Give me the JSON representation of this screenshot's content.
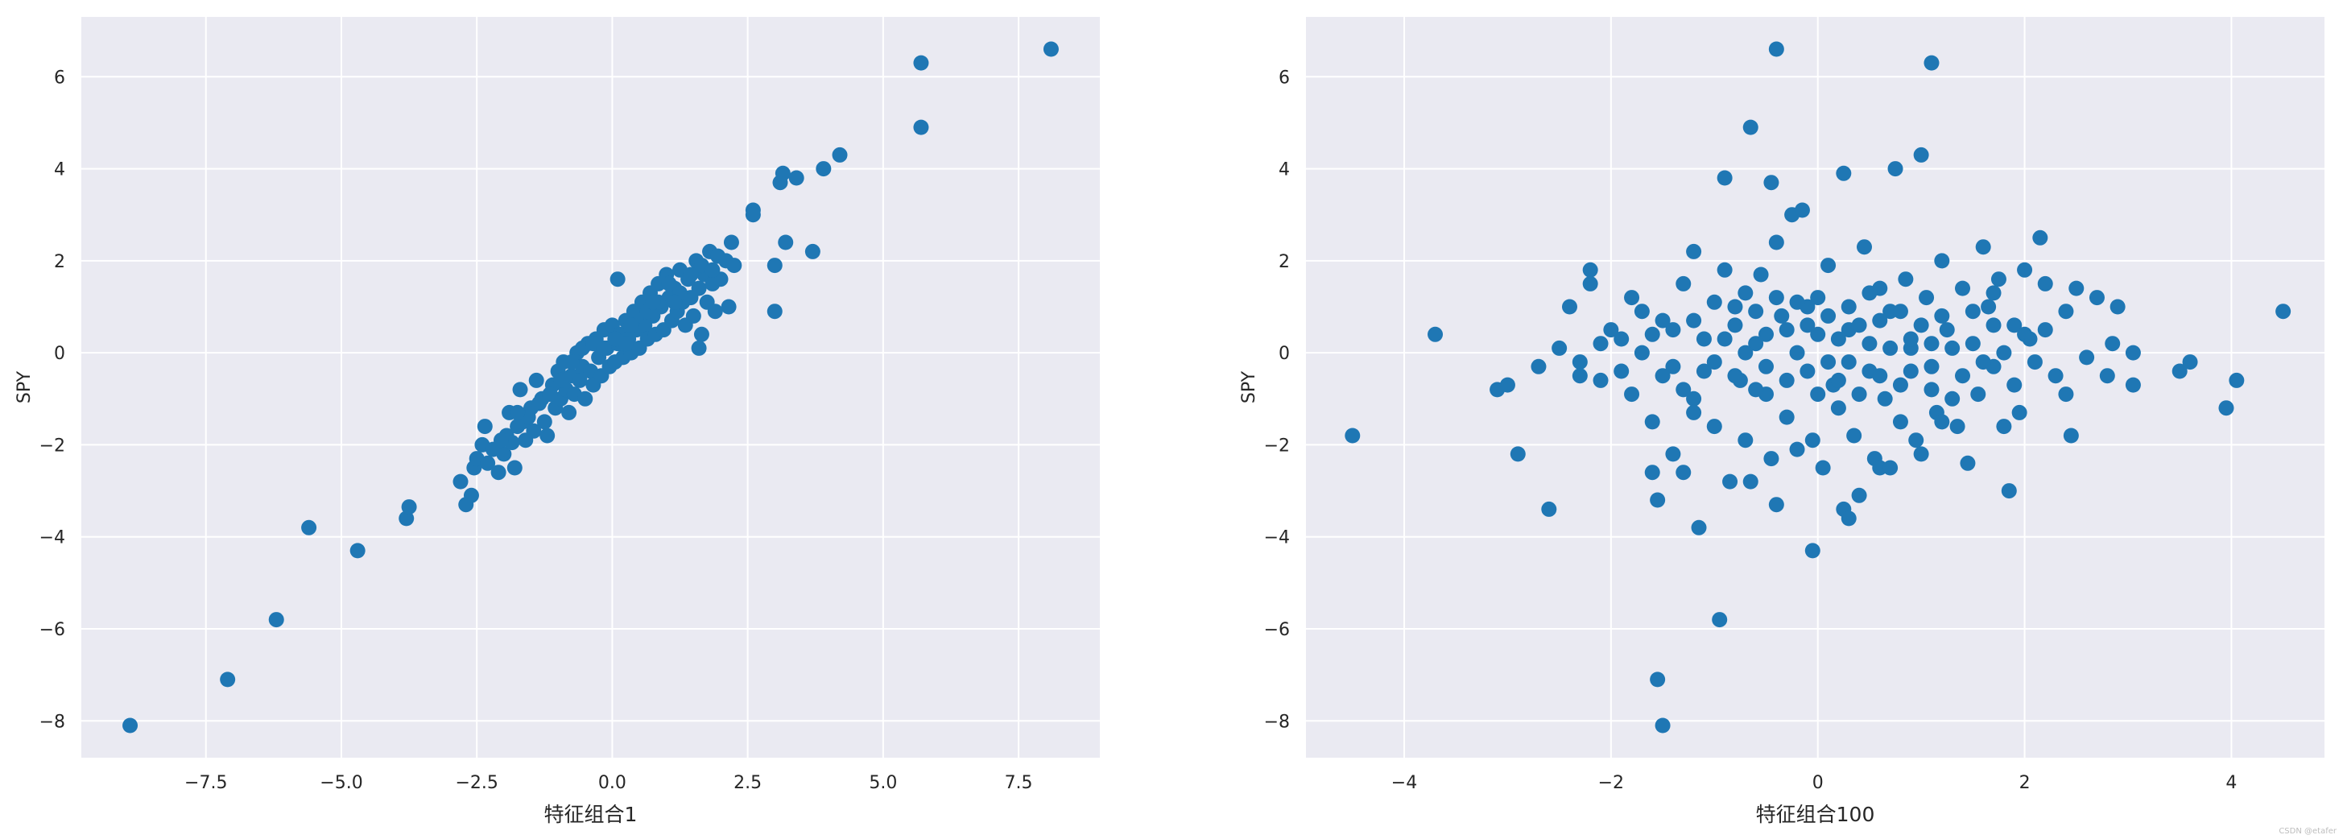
{
  "watermark": "CSDN @etafer",
  "chart_data": [
    {
      "type": "scatter",
      "xlabel": "特征组合1",
      "ylabel": "SPY",
      "xlim": [
        -9.8,
        9.0
      ],
      "ylim": [
        -8.8,
        7.3
      ],
      "xticks": [
        -7.5,
        -5.0,
        -2.5,
        0.0,
        2.5,
        5.0,
        7.5
      ],
      "xtick_labels": [
        "−7.5",
        "−5.0",
        "−2.5",
        "0.0",
        "2.5",
        "5.0",
        "7.5"
      ],
      "yticks": [
        -8,
        -6,
        -4,
        -2,
        0,
        2,
        4,
        6
      ],
      "ytick_labels": [
        "−8",
        "−6",
        "−4",
        "−2",
        "0",
        "2",
        "4",
        "6"
      ],
      "grid": true,
      "color": "#1f77b4",
      "background": "#eaeaf2",
      "points": [
        [
          -8.9,
          -8.1
        ],
        [
          -7.1,
          -7.1
        ],
        [
          -6.2,
          -5.8
        ],
        [
          -5.6,
          -3.8
        ],
        [
          -4.7,
          -4.3
        ],
        [
          -3.8,
          -3.6
        ],
        [
          -3.75,
          -3.35
        ],
        [
          -2.8,
          -2.8
        ],
        [
          -2.7,
          -3.3
        ],
        [
          -2.6,
          -3.1
        ],
        [
          -2.55,
          -2.5
        ],
        [
          -2.5,
          -2.3
        ],
        [
          -2.4,
          -2.0
        ],
        [
          -2.35,
          -1.6
        ],
        [
          -2.3,
          -2.4
        ],
        [
          -2.2,
          -2.1
        ],
        [
          -2.1,
          -2.6
        ],
        [
          -2.0,
          -2.2
        ],
        [
          -1.95,
          -1.8
        ],
        [
          -1.9,
          -1.3
        ],
        [
          -1.85,
          -1.95
        ],
        [
          -1.8,
          -2.5
        ],
        [
          -1.75,
          -1.6
        ],
        [
          -1.7,
          -0.8
        ],
        [
          -1.65,
          -1.5
        ],
        [
          -1.6,
          -1.9
        ],
        [
          -1.5,
          -1.2
        ],
        [
          -1.45,
          -1.7
        ],
        [
          -1.4,
          -0.6
        ],
        [
          -1.3,
          -1.0
        ],
        [
          -1.25,
          -1.5
        ],
        [
          -1.2,
          -1.8
        ],
        [
          -1.1,
          -0.7
        ],
        [
          -1.05,
          -1.2
        ],
        [
          -1.0,
          -0.4
        ],
        [
          -0.95,
          -1.0
        ],
        [
          -0.9,
          -0.2
        ],
        [
          -0.85,
          -0.8
        ],
        [
          -0.8,
          -1.3
        ],
        [
          -0.75,
          -0.5
        ],
        [
          -0.7,
          -0.9
        ],
        [
          -0.65,
          0.0
        ],
        [
          -0.6,
          -0.6
        ],
        [
          -0.55,
          -0.3
        ],
        [
          -0.5,
          -1.0
        ],
        [
          -0.45,
          0.2
        ],
        [
          -0.4,
          -0.4
        ],
        [
          -0.35,
          -0.7
        ],
        [
          -0.3,
          0.3
        ],
        [
          -0.25,
          -0.1
        ],
        [
          -0.2,
          -0.5
        ],
        [
          -0.15,
          0.5
        ],
        [
          -0.1,
          0.1
        ],
        [
          -0.05,
          -0.3
        ],
        [
          0.0,
          0.6
        ],
        [
          0.05,
          -0.2
        ],
        [
          0.1,
          0.2
        ],
        [
          0.1,
          1.6
        ],
        [
          0.15,
          0.4
        ],
        [
          0.2,
          -0.1
        ],
        [
          0.25,
          0.7
        ],
        [
          0.3,
          0.3
        ],
        [
          0.35,
          0.0
        ],
        [
          0.4,
          0.9
        ],
        [
          0.45,
          0.5
        ],
        [
          0.5,
          0.1
        ],
        [
          0.55,
          1.1
        ],
        [
          0.6,
          0.6
        ],
        [
          0.65,
          0.3
        ],
        [
          0.7,
          1.3
        ],
        [
          0.75,
          0.8
        ],
        [
          0.8,
          0.4
        ],
        [
          0.85,
          1.5
        ],
        [
          0.9,
          1.0
        ],
        [
          0.95,
          0.5
        ],
        [
          1.0,
          1.7
        ],
        [
          1.05,
          1.2
        ],
        [
          1.1,
          0.7
        ],
        [
          1.15,
          1.4
        ],
        [
          1.2,
          0.9
        ],
        [
          1.25,
          1.8
        ],
        [
          1.3,
          1.1
        ],
        [
          1.35,
          0.6
        ],
        [
          1.4,
          1.6
        ],
        [
          1.45,
          1.2
        ],
        [
          1.5,
          0.8
        ],
        [
          1.55,
          2.0
        ],
        [
          1.6,
          1.4
        ],
        [
          1.65,
          0.4
        ],
        [
          1.6,
          0.1
        ],
        [
          1.7,
          1.7
        ],
        [
          1.75,
          1.1
        ],
        [
          1.8,
          2.2
        ],
        [
          1.85,
          1.5
        ],
        [
          1.9,
          0.9
        ],
        [
          1.95,
          2.1
        ],
        [
          2.0,
          1.6
        ],
        [
          2.1,
          2.0
        ],
        [
          2.15,
          1.0
        ],
        [
          2.2,
          2.4
        ],
        [
          2.25,
          1.9
        ],
        [
          2.6,
          3.1
        ],
        [
          2.6,
          3.0
        ],
        [
          3.0,
          1.9
        ],
        [
          3.0,
          0.9
        ],
        [
          3.1,
          3.7
        ],
        [
          3.15,
          3.9
        ],
        [
          3.2,
          2.4
        ],
        [
          3.4,
          3.8
        ],
        [
          3.7,
          2.2
        ],
        [
          3.9,
          4.0
        ],
        [
          4.2,
          4.3
        ],
        [
          5.7,
          6.3
        ],
        [
          5.7,
          4.9
        ],
        [
          8.1,
          6.6
        ],
        [
          -1.55,
          -1.4
        ],
        [
          -1.35,
          -1.1
        ],
        [
          -1.15,
          -0.9
        ],
        [
          -0.95,
          -0.6
        ],
        [
          -0.75,
          -0.2
        ],
        [
          -0.55,
          0.1
        ],
        [
          -0.35,
          0.2
        ],
        [
          -0.15,
          0.1
        ],
        [
          0.05,
          0.3
        ],
        [
          0.25,
          0.2
        ],
        [
          0.45,
          0.8
        ],
        [
          0.65,
          0.9
        ],
        [
          0.85,
          1.1
        ],
        [
          1.05,
          1.5
        ],
        [
          1.25,
          1.3
        ],
        [
          1.45,
          1.7
        ],
        [
          1.65,
          1.9
        ],
        [
          1.85,
          1.8
        ],
        [
          -2.05,
          -1.9
        ],
        [
          -1.75,
          -1.3
        ],
        [
          0.35,
          0.6
        ],
        [
          0.75,
          1.1
        ],
        [
          1.15,
          1.1
        ]
      ]
    },
    {
      "type": "scatter",
      "xlabel": "特征组合100",
      "ylabel": "SPY",
      "xlim": [
        -4.95,
        4.9
      ],
      "ylim": [
        -8.8,
        7.3
      ],
      "xticks": [
        -4,
        -2,
        0,
        2,
        4
      ],
      "xtick_labels": [
        "−4",
        "−2",
        "0",
        "2",
        "4"
      ],
      "yticks": [
        -8,
        -6,
        -4,
        -2,
        0,
        2,
        4,
        6
      ],
      "ytick_labels": [
        "−8",
        "−6",
        "−4",
        "−2",
        "0",
        "2",
        "4",
        "6"
      ],
      "grid": true,
      "color": "#1f77b4",
      "background": "#eaeaf2",
      "points": [
        [
          -4.5,
          -1.8
        ],
        [
          -3.7,
          0.4
        ],
        [
          -3.1,
          -0.8
        ],
        [
          -3.0,
          -0.7
        ],
        [
          -2.9,
          -2.2
        ],
        [
          -2.6,
          -3.4
        ],
        [
          -2.7,
          -0.3
        ],
        [
          -2.5,
          0.1
        ],
        [
          -2.4,
          1.0
        ],
        [
          -2.3,
          -0.2
        ],
        [
          -2.2,
          1.8
        ],
        [
          -2.2,
          1.5
        ],
        [
          -2.1,
          -0.6
        ],
        [
          -2.0,
          0.5
        ],
        [
          -1.9,
          -0.4
        ],
        [
          -1.8,
          1.2
        ],
        [
          -1.7,
          0.0
        ],
        [
          -1.6,
          -1.5
        ],
        [
          -1.6,
          -2.6
        ],
        [
          -1.55,
          -3.2
        ],
        [
          -1.55,
          -7.1
        ],
        [
          -1.5,
          -8.1
        ],
        [
          -1.5,
          0.7
        ],
        [
          -1.4,
          -0.3
        ],
        [
          -1.4,
          -2.2
        ],
        [
          -1.3,
          1.5
        ],
        [
          -1.3,
          -2.6
        ],
        [
          -1.2,
          2.2
        ],
        [
          -1.2,
          -1.0
        ],
        [
          -1.15,
          -3.8
        ],
        [
          -1.1,
          0.3
        ],
        [
          -1.0,
          -1.6
        ],
        [
          -0.95,
          -5.8
        ],
        [
          -0.9,
          3.8
        ],
        [
          -0.9,
          1.8
        ],
        [
          -0.85,
          -2.8
        ],
        [
          -0.8,
          0.6
        ],
        [
          -0.75,
          -0.6
        ],
        [
          -0.7,
          -1.9
        ],
        [
          -0.7,
          1.3
        ],
        [
          -0.65,
          -2.8
        ],
        [
          -0.65,
          4.9
        ],
        [
          -0.6,
          0.2
        ],
        [
          -0.55,
          1.7
        ],
        [
          -0.5,
          -0.9
        ],
        [
          -0.45,
          3.7
        ],
        [
          -0.45,
          -2.3
        ],
        [
          -0.4,
          2.4
        ],
        [
          -0.4,
          -3.3
        ],
        [
          -0.4,
          6.6
        ],
        [
          -0.35,
          0.8
        ],
        [
          -0.3,
          -1.4
        ],
        [
          -0.25,
          3.0
        ],
        [
          -0.2,
          -2.1
        ],
        [
          -0.15,
          3.1
        ],
        [
          -0.1,
          1.0
        ],
        [
          -0.05,
          -1.9
        ],
        [
          0.0,
          0.4
        ],
        [
          -0.05,
          -4.3
        ],
        [
          0.05,
          -2.5
        ],
        [
          0.1,
          1.9
        ],
        [
          0.15,
          -0.7
        ],
        [
          0.2,
          -1.2
        ],
        [
          0.25,
          -3.4
        ],
        [
          0.25,
          3.9
        ],
        [
          0.3,
          -3.6
        ],
        [
          0.3,
          0.5
        ],
        [
          0.35,
          -1.8
        ],
        [
          0.4,
          -3.1
        ],
        [
          0.45,
          2.3
        ],
        [
          0.5,
          -0.4
        ],
        [
          0.55,
          -2.3
        ],
        [
          0.6,
          1.4
        ],
        [
          0.6,
          -2.5
        ],
        [
          0.65,
          -1.0
        ],
        [
          0.7,
          0.9
        ],
        [
          0.7,
          -2.5
        ],
        [
          0.75,
          4.0
        ],
        [
          0.8,
          -1.5
        ],
        [
          0.85,
          1.6
        ],
        [
          0.9,
          0.1
        ],
        [
          0.95,
          -1.9
        ],
        [
          1.0,
          4.3
        ],
        [
          1.0,
          -2.2
        ],
        [
          1.05,
          1.2
        ],
        [
          1.1,
          6.3
        ],
        [
          1.1,
          -0.3
        ],
        [
          1.15,
          -1.3
        ],
        [
          1.2,
          2.0
        ],
        [
          1.25,
          0.5
        ],
        [
          1.3,
          -1.0
        ],
        [
          1.35,
          -1.6
        ],
        [
          1.4,
          1.4
        ],
        [
          1.45,
          -2.4
        ],
        [
          1.5,
          0.2
        ],
        [
          1.55,
          -0.9
        ],
        [
          1.6,
          2.3
        ],
        [
          1.65,
          1.0
        ],
        [
          1.7,
          -0.3
        ],
        [
          1.75,
          1.6
        ],
        [
          1.8,
          -1.6
        ],
        [
          1.85,
          -3.0
        ],
        [
          1.9,
          0.6
        ],
        [
          1.95,
          -1.3
        ],
        [
          2.0,
          1.8
        ],
        [
          2.05,
          0.3
        ],
        [
          2.1,
          -0.2
        ],
        [
          2.15,
          2.5
        ],
        [
          2.2,
          1.5
        ],
        [
          2.3,
          -0.5
        ],
        [
          2.4,
          0.9
        ],
        [
          2.45,
          -1.8
        ],
        [
          2.5,
          1.4
        ],
        [
          2.6,
          -0.1
        ],
        [
          2.7,
          1.2
        ],
        [
          2.8,
          -0.5
        ],
        [
          2.85,
          0.2
        ],
        [
          2.9,
          1.0
        ],
        [
          3.05,
          -0.7
        ],
        [
          3.05,
          0.0
        ],
        [
          3.5,
          -0.4
        ],
        [
          3.6,
          -0.2
        ],
        [
          3.95,
          -1.2
        ],
        [
          4.05,
          -0.6
        ],
        [
          4.5,
          0.9
        ],
        [
          -1.9,
          0.3
        ],
        [
          -1.7,
          0.9
        ],
        [
          -1.6,
          0.4
        ],
        [
          -1.5,
          -0.5
        ],
        [
          -1.4,
          0.5
        ],
        [
          -1.3,
          -0.8
        ],
        [
          -1.2,
          0.7
        ],
        [
          -1.1,
          -0.4
        ],
        [
          -1.0,
          1.1
        ],
        [
          -1.0,
          -0.2
        ],
        [
          -0.9,
          0.3
        ],
        [
          -0.8,
          -0.5
        ],
        [
          -0.8,
          1.0
        ],
        [
          -0.7,
          0.0
        ],
        [
          -0.6,
          -0.8
        ],
        [
          -0.6,
          0.9
        ],
        [
          -0.5,
          0.4
        ],
        [
          -0.5,
          -0.3
        ],
        [
          -0.4,
          1.2
        ],
        [
          -0.3,
          -0.6
        ],
        [
          -0.3,
          0.5
        ],
        [
          -0.2,
          0.0
        ],
        [
          -0.2,
          1.1
        ],
        [
          -0.1,
          -0.4
        ],
        [
          -0.1,
          0.6
        ],
        [
          0.0,
          -0.9
        ],
        [
          0.0,
          1.2
        ],
        [
          0.1,
          -0.2
        ],
        [
          0.1,
          0.8
        ],
        [
          0.2,
          0.3
        ],
        [
          0.2,
          -0.6
        ],
        [
          0.3,
          1.0
        ],
        [
          0.3,
          -0.2
        ],
        [
          0.4,
          0.6
        ],
        [
          0.4,
          -0.9
        ],
        [
          0.5,
          0.2
        ],
        [
          0.5,
          1.3
        ],
        [
          0.6,
          -0.5
        ],
        [
          0.6,
          0.7
        ],
        [
          0.7,
          0.1
        ],
        [
          0.8,
          -0.7
        ],
        [
          0.8,
          0.9
        ],
        [
          0.9,
          0.3
        ],
        [
          0.9,
          -0.4
        ],
        [
          1.0,
          0.6
        ],
        [
          1.1,
          -0.8
        ],
        [
          1.1,
          0.2
        ],
        [
          1.2,
          0.8
        ],
        [
          1.3,
          0.1
        ],
        [
          1.4,
          -0.5
        ],
        [
          1.5,
          0.9
        ],
        [
          1.6,
          -0.2
        ],
        [
          1.7,
          0.6
        ],
        [
          1.8,
          0.0
        ],
        [
          1.9,
          -0.7
        ],
        [
          2.0,
          0.4
        ],
        [
          -2.3,
          -0.5
        ],
        [
          -2.1,
          0.2
        ],
        [
          -1.8,
          -0.9
        ],
        [
          -1.2,
          -1.3
        ],
        [
          1.2,
          -1.5
        ],
        [
          1.7,
          1.3
        ],
        [
          2.2,
          0.5
        ],
        [
          2.4,
          -0.9
        ]
      ]
    }
  ]
}
